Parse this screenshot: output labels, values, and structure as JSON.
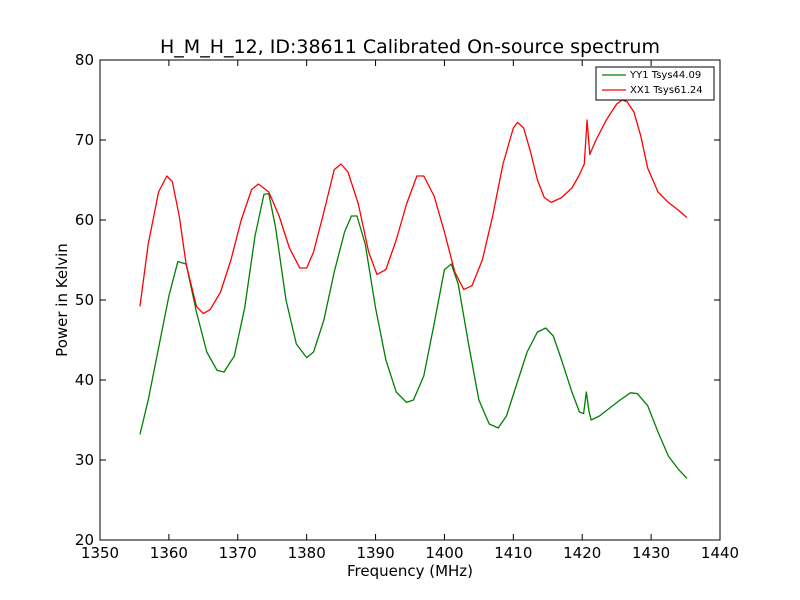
{
  "chart_data": {
    "type": "line",
    "title": "H_M_H_12, ID:38611 Calibrated On-source spectrum",
    "xlabel": "Frequency (MHz)",
    "ylabel": "Power in Kelvin",
    "xlim": [
      1350,
      1440
    ],
    "ylim": [
      20,
      80
    ],
    "xticks": [
      1350,
      1360,
      1370,
      1380,
      1390,
      1400,
      1410,
      1420,
      1430,
      1440
    ],
    "yticks": [
      20,
      30,
      40,
      50,
      60,
      70,
      80
    ],
    "grid": false,
    "legend_position": "top-right",
    "series": [
      {
        "name": "YY1 Tsys44.09",
        "color": "#008000",
        "x": [
          1355.8,
          1357,
          1358.5,
          1360,
          1361.3,
          1362.5,
          1364,
          1365.5,
          1367,
          1368,
          1369.5,
          1371,
          1372.5,
          1373.8,
          1374.5,
          1375.5,
          1377,
          1378.5,
          1380,
          1381,
          1382.5,
          1384,
          1385.5,
          1386.5,
          1387.3,
          1388.5,
          1390,
          1391.5,
          1393,
          1394.5,
          1395.5,
          1397,
          1398.5,
          1400,
          1401,
          1402,
          1403.5,
          1405,
          1406.5,
          1407.8,
          1409,
          1410.5,
          1412,
          1413.5,
          1414.7,
          1415.8,
          1417,
          1418.5,
          1419.6,
          1420.2,
          1420.6,
          1421,
          1421.3,
          1422.5,
          1424,
          1425.5,
          1427,
          1428,
          1429.5,
          1431,
          1432.5,
          1434,
          1435.2
        ],
        "y": [
          33.2,
          37.5,
          44,
          50.5,
          54.8,
          54.5,
          48.5,
          43.5,
          41.2,
          41,
          43,
          49,
          58,
          63.2,
          63.3,
          59,
          50,
          44.5,
          42.8,
          43.5,
          47.5,
          53.5,
          58.5,
          60.5,
          60.5,
          57,
          49,
          42.5,
          38.5,
          37.2,
          37.5,
          40.5,
          47,
          53.8,
          54.5,
          52,
          44.5,
          37.5,
          34.5,
          34,
          35.5,
          39.5,
          43.5,
          46,
          46.5,
          45.5,
          42.5,
          38.5,
          36,
          35.8,
          38.5,
          36,
          35,
          35.5,
          36.5,
          37.5,
          38.4,
          38.3,
          36.8,
          33.5,
          30.5,
          28.8,
          27.7
        ]
      },
      {
        "name": "XX1 Tsys61.24",
        "color": "#ff0000",
        "x": [
          1355.8,
          1357,
          1358.5,
          1359.7,
          1360.5,
          1361.5,
          1362.5,
          1364,
          1365,
          1366,
          1367.5,
          1369,
          1370.5,
          1372,
          1373,
          1374.5,
          1376,
          1377.5,
          1379,
          1380,
          1381,
          1382.5,
          1384,
          1385,
          1386,
          1387.5,
          1389,
          1390.2,
          1391.5,
          1393,
          1394.5,
          1396,
          1397,
          1398.5,
          1400,
          1401.5,
          1402.8,
          1404,
          1405.5,
          1407,
          1408.5,
          1410,
          1410.6,
          1411.5,
          1412.5,
          1413.5,
          1414.5,
          1415.5,
          1417,
          1418.5,
          1419.5,
          1420.3,
          1420.7,
          1421.1,
          1422,
          1423.5,
          1425,
          1425.8,
          1426.5,
          1427.5,
          1428.5,
          1429.5,
          1431,
          1432.5,
          1434,
          1435.2
        ],
        "y": [
          49.2,
          57,
          63.5,
          65.5,
          64.8,
          60.5,
          54.5,
          49.2,
          48.3,
          48.8,
          51,
          55,
          60,
          63.8,
          64.5,
          63.5,
          60.5,
          56.5,
          54,
          54,
          56,
          61,
          66.3,
          67,
          66,
          62,
          56,
          53.2,
          53.8,
          57.5,
          62,
          65.5,
          65.5,
          63,
          58.5,
          53.5,
          51.3,
          51.8,
          55,
          60.5,
          67,
          71.5,
          72.2,
          71.5,
          68.5,
          65,
          62.8,
          62.2,
          62.8,
          64,
          65.5,
          67,
          72.5,
          68.2,
          70,
          72.5,
          74.5,
          75,
          74.8,
          73.5,
          70.5,
          66.5,
          63.5,
          62.2,
          61.2,
          60.3
        ]
      }
    ]
  }
}
